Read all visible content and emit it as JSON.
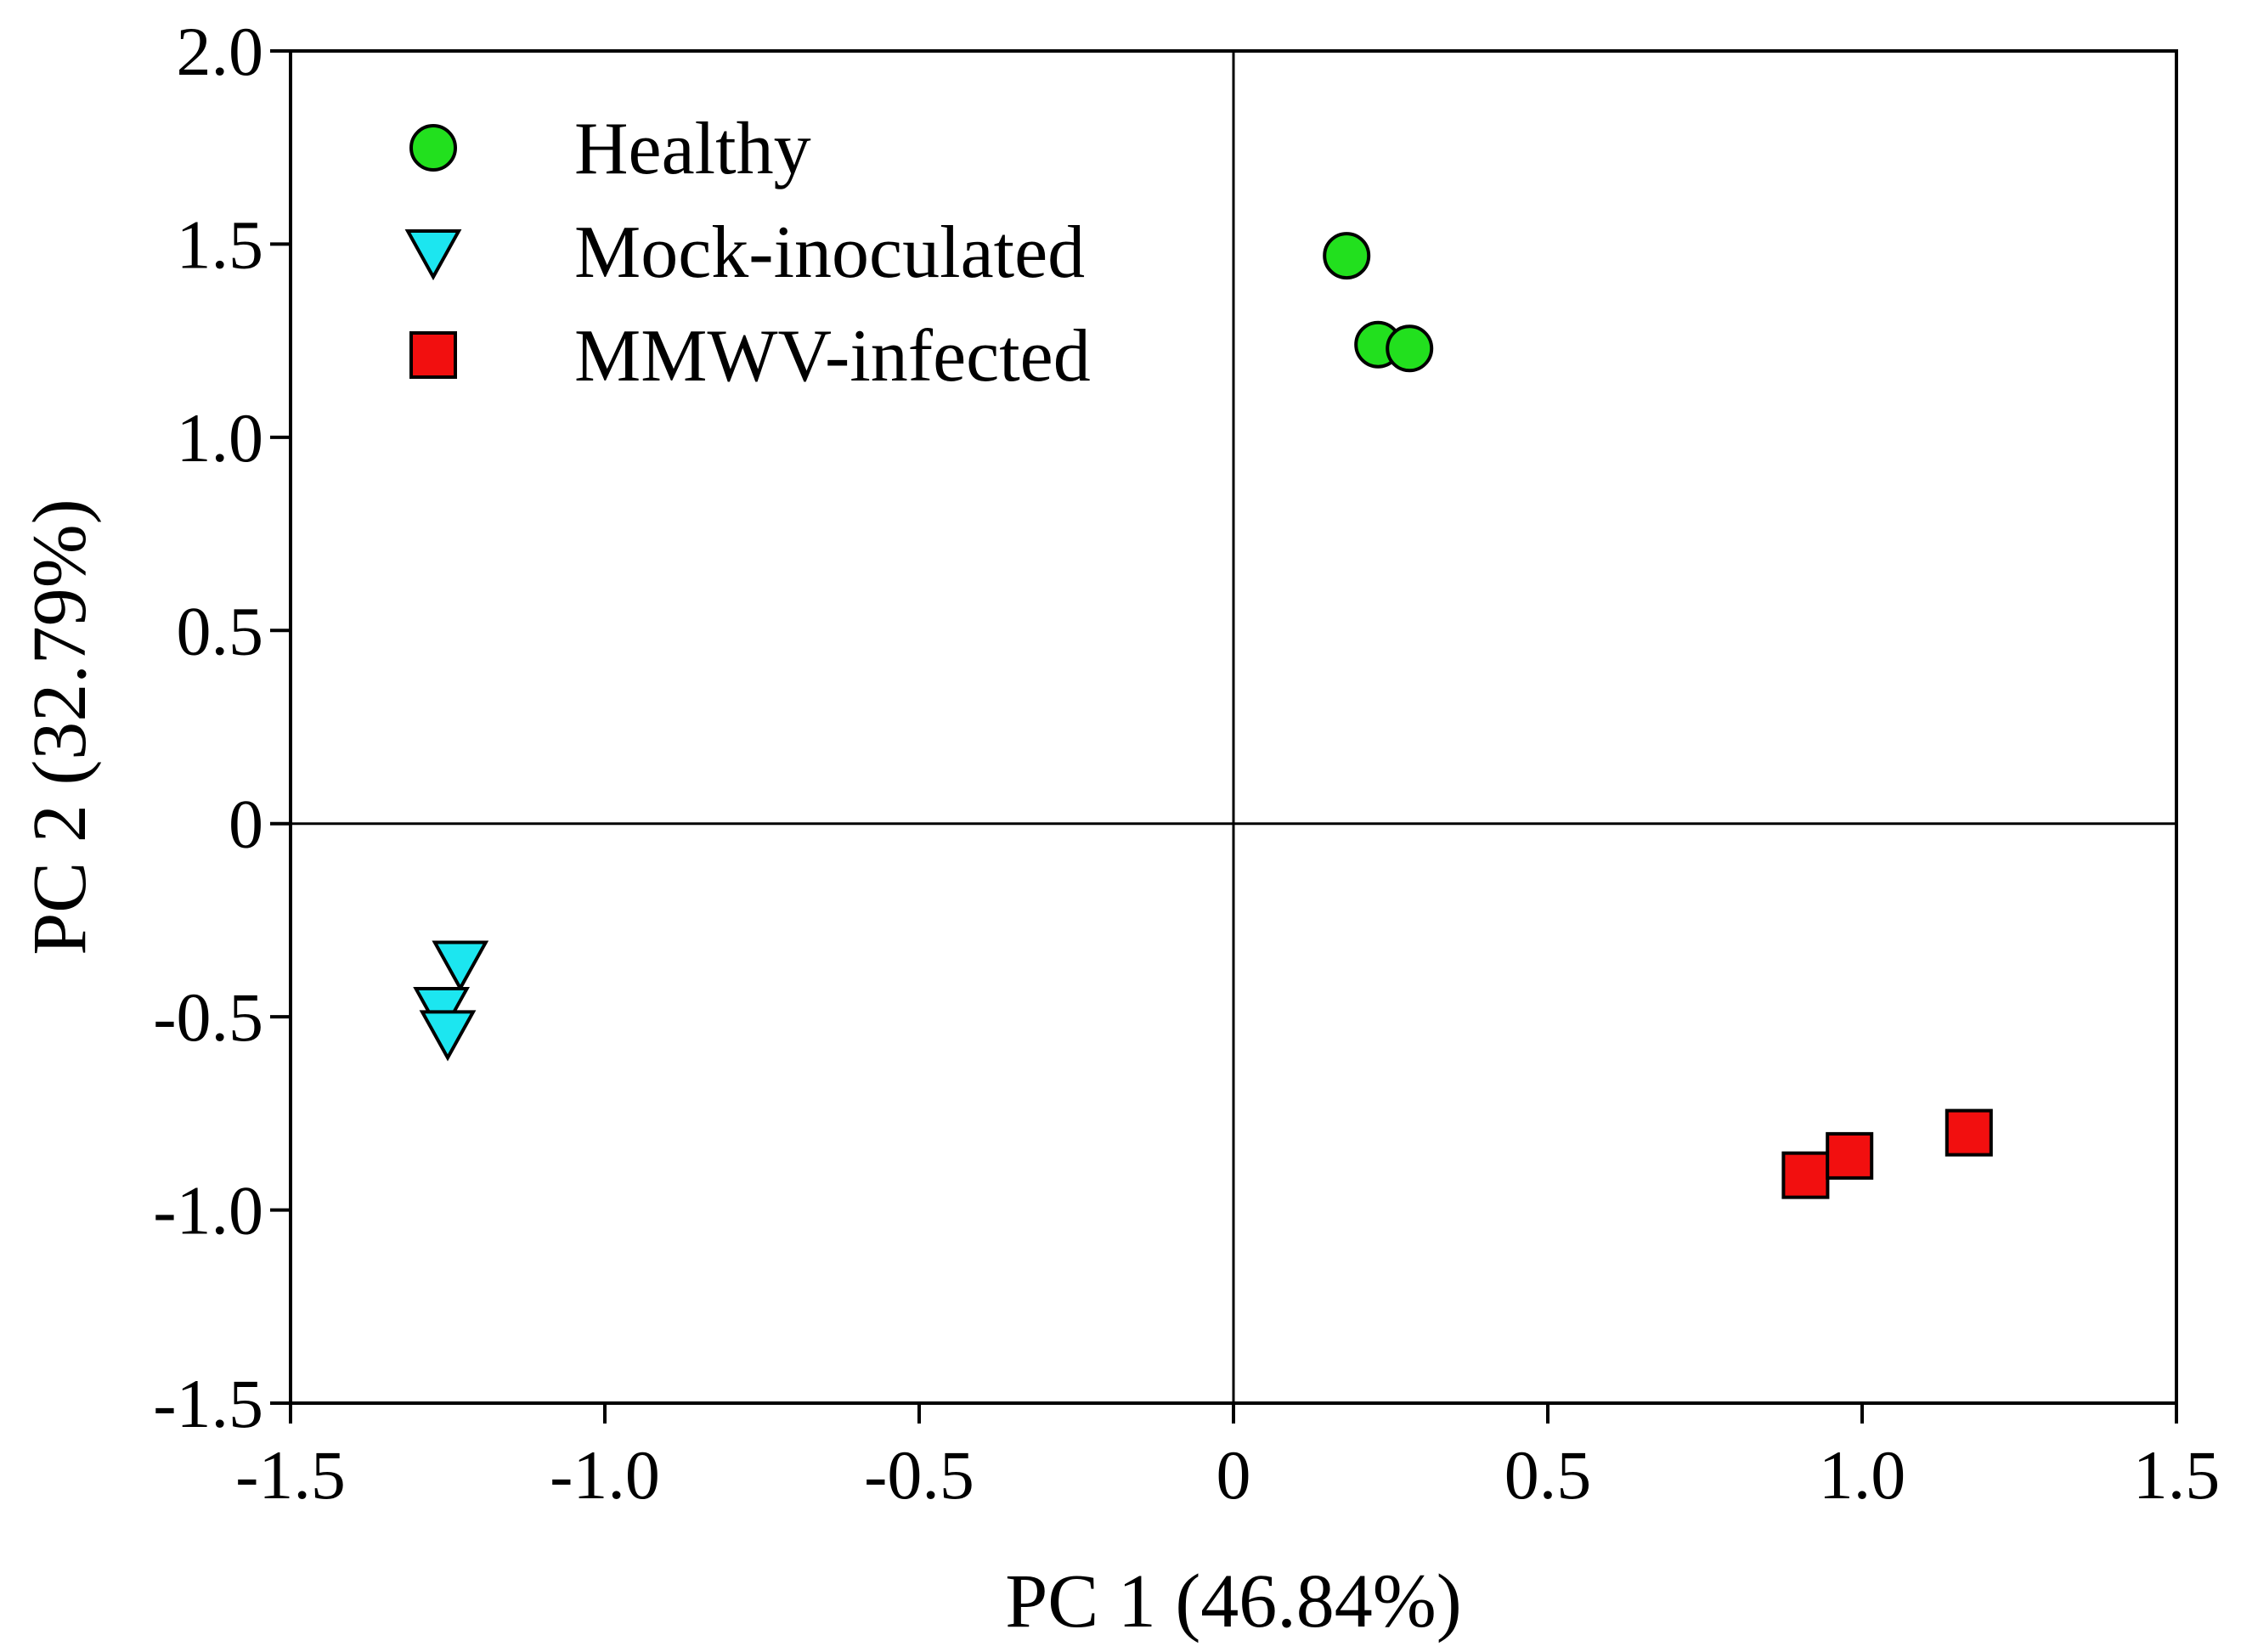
{
  "chart_data": {
    "type": "scatter",
    "title": "",
    "xlabel": "PC 1 (46.84%)",
    "ylabel": "PC 2 (32.79%)",
    "xlim": [
      -1.5,
      1.5
    ],
    "ylim": [
      -1.5,
      2.0
    ],
    "x_ticks": [
      -1.5,
      -1.0,
      -0.5,
      0,
      0.5,
      1.0,
      1.5
    ],
    "x_tick_labels": [
      "-1.5",
      "-1.0",
      "-0.5",
      "0",
      "0.5",
      "1.0",
      "1.5"
    ],
    "y_ticks": [
      -1.5,
      -1.0,
      -0.5,
      0,
      0.5,
      1.0,
      1.5,
      2.0
    ],
    "y_tick_labels": [
      "-1.5",
      "-1.0",
      "-0.5",
      "0",
      "0.5",
      "1.0",
      "1.5",
      "2.0"
    ],
    "grid": false,
    "zero_lines": true,
    "legend_position": "top-left",
    "series": [
      {
        "name": "Healthy",
        "marker": "circle",
        "color": "#22e01e",
        "points": [
          [
            0.18,
            1.47
          ],
          [
            0.23,
            1.24
          ],
          [
            0.28,
            1.23
          ]
        ]
      },
      {
        "name": "Mock-inoculated",
        "marker": "triangle-down",
        "color": "#1ce6f0",
        "points": [
          [
            -1.23,
            -0.36
          ],
          [
            -1.26,
            -0.48
          ],
          [
            -1.25,
            -0.54
          ]
        ]
      },
      {
        "name": "MMWV-infected",
        "marker": "square",
        "color": "#f20f0f",
        "points": [
          [
            0.91,
            -0.91
          ],
          [
            0.98,
            -0.86
          ],
          [
            1.17,
            -0.8
          ]
        ]
      }
    ]
  }
}
